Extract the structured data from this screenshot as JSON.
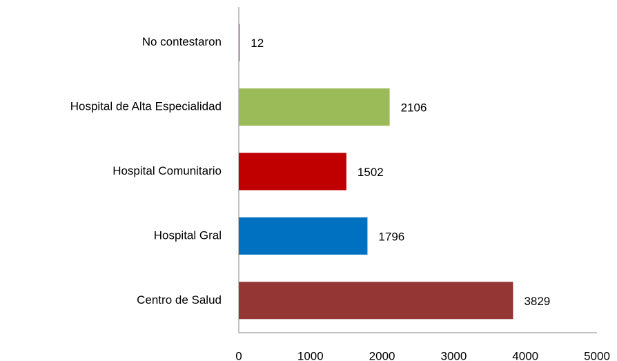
{
  "chart_data": {
    "type": "barh",
    "categories": [
      "No contestaron",
      "Hospital de Alta Especialidad",
      "Hospital Comunitario",
      "Hospital Gral",
      "Centro de Salud"
    ],
    "values": [
      12,
      2106,
      1502,
      1796,
      3829
    ],
    "colors": [
      "#7f6084",
      "#9bbb59",
      "#c00000",
      "#0070c0",
      "#943634"
    ],
    "xlim": [
      0,
      5000
    ],
    "xticks": [
      0,
      1000,
      2000,
      3000,
      4000,
      5000
    ],
    "grid": false
  }
}
